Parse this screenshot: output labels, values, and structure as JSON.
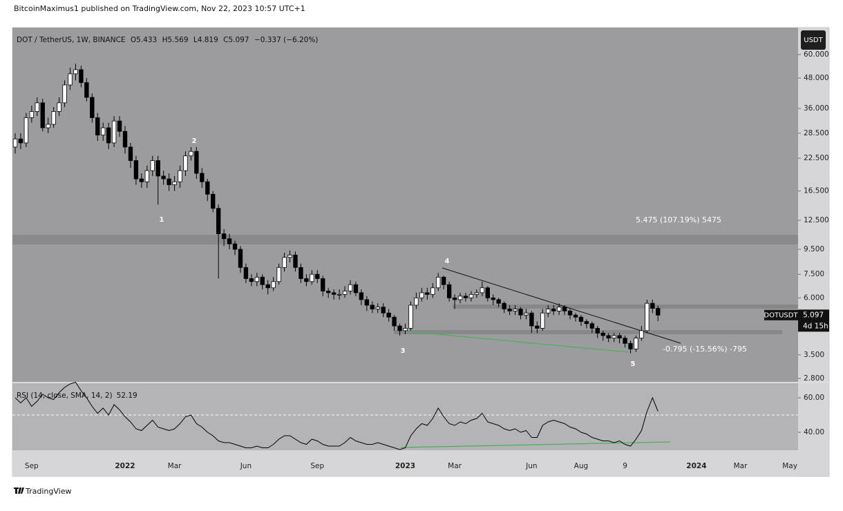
{
  "header": {
    "published": "BitcoinMaximus1 published on TradingView.com, Nov 22, 2023 10:57 UTC+1"
  },
  "footer": "TradingView",
  "chart_data": {
    "type": "candlestick",
    "title": "DOT / TetherUS, 1W, BINANCE",
    "ohlc_labels": [
      "O",
      "H",
      "L",
      "C"
    ],
    "change_label": "−0.337 (−6.20%)",
    "currency": "USDT",
    "symbol": "DOTUSDT",
    "countdown": "4d 15h",
    "log_scale": true,
    "up_color": "#ffffff",
    "down_color": "#000000",
    "wick_color": "#000000",
    "categories": [
      null,
      null,
      null,
      "Sep",
      null,
      null,
      null,
      null,
      null,
      null,
      null,
      null,
      null,
      null,
      null,
      null,
      null,
      null,
      null,
      null,
      "2022",
      null,
      null,
      null,
      null,
      null,
      null,
      null,
      null,
      "Mar",
      null,
      null,
      null,
      null,
      null,
      null,
      null,
      null,
      null,
      null,
      null,
      null,
      "Jun",
      null,
      null,
      null,
      null,
      null,
      null,
      null,
      null,
      null,
      null,
      null,
      null,
      "Sep",
      null,
      null,
      null,
      null,
      null,
      null,
      null,
      null,
      null,
      null,
      null,
      null,
      null,
      null,
      null,
      "2023",
      null,
      null,
      null,
      null,
      null,
      null,
      null,
      null,
      "Mar",
      null,
      null,
      null,
      null,
      null,
      null,
      null,
      null,
      null,
      null,
      null,
      null,
      null,
      "Jun",
      null,
      null,
      null,
      null,
      null,
      null,
      null,
      null,
      "Aug",
      null,
      null,
      null,
      null,
      null,
      null,
      null,
      "9",
      null,
      null,
      null,
      null,
      null,
      null,
      null,
      null,
      null,
      null,
      null,
      null,
      "2024",
      null,
      null,
      null,
      null,
      null,
      null,
      null,
      "Mar",
      null,
      null,
      null,
      null,
      null,
      null,
      null,
      null,
      "May",
      null
    ],
    "candles": {
      "open": [
        25,
        27,
        26,
        33,
        35,
        38,
        30,
        31,
        35,
        38,
        45,
        50,
        52,
        46,
        40,
        33,
        28,
        30,
        26,
        32,
        29,
        25,
        22,
        18.5,
        18,
        20,
        22,
        19,
        18.5,
        17.5,
        18,
        20,
        23,
        24,
        19.5,
        18,
        16,
        14,
        11,
        10.5,
        10,
        9.5,
        8,
        7.2,
        7,
        7.3,
        6.8,
        6.6,
        7,
        8,
        8.8,
        9,
        8,
        7.2,
        7,
        7.5,
        7.2,
        6.4,
        6.3,
        6.2,
        6.2,
        6.4,
        6.8,
        6.3,
        5.9,
        5.6,
        5.4,
        5.5,
        5.2,
        5,
        4.6,
        4.4,
        4.5,
        5.6,
        6,
        6.3,
        6.2,
        6.6,
        7.3,
        6.8,
        6,
        5.9,
        6.1,
        6,
        6.2,
        6.3,
        6.6,
        6,
        5.9,
        5.7,
        5.4,
        5.3,
        5.4,
        5.1,
        5.2,
        4.6,
        4.5,
        5.2,
        5.4,
        5.3,
        5.5,
        5.3,
        5.1,
        5,
        4.8,
        4.7,
        4.5,
        4.3,
        4.2,
        4.1,
        4.2,
        4.1,
        3.9,
        3.7,
        4.1,
        4.4,
        5.7,
        5.433,
        null,
        null,
        null,
        null,
        null,
        null,
        null,
        null,
        null,
        null,
        null,
        null,
        null,
        null,
        null,
        null,
        null,
        null,
        null,
        null,
        null,
        null,
        null,
        null,
        null
      ],
      "high": [
        28.5,
        28.5,
        34.5,
        37,
        40,
        39.5,
        33,
        36.5,
        40,
        47,
        53,
        55,
        54,
        48,
        41.5,
        34.5,
        31.5,
        31.5,
        33.5,
        33.5,
        30.5,
        26,
        23,
        19.5,
        21,
        23,
        23,
        20,
        19.5,
        19,
        21,
        24,
        25,
        25,
        20.5,
        18.5,
        16.5,
        14.5,
        11.5,
        11,
        10.3,
        9.8,
        8.3,
        7.5,
        7.6,
        7.5,
        7.1,
        7.3,
        8.3,
        9.2,
        9.4,
        9.3,
        8.3,
        7.5,
        7.8,
        7.8,
        7.4,
        6.6,
        6.5,
        6.5,
        6.7,
        7.1,
        7,
        6.5,
        6.1,
        5.8,
        5.7,
        5.7,
        5.4,
        5.1,
        4.7,
        4.7,
        5.8,
        6.3,
        6.6,
        6.6,
        6.9,
        7.6,
        7.4,
        7,
        6.2,
        6.3,
        6.3,
        6.4,
        6.5,
        7,
        6.7,
        6.2,
        6,
        5.8,
        5.6,
        5.6,
        5.5,
        5.4,
        5.3,
        4.8,
        5.4,
        5.6,
        5.6,
        5.7,
        5.6,
        5.4,
        5.2,
        5.1,
        4.9,
        4.8,
        4.6,
        4.4,
        4.3,
        4.3,
        4.3,
        4.2,
        4,
        4.2,
        4.6,
        5.9,
        5.9,
        5.569,
        null,
        null,
        null,
        null,
        null,
        null,
        null,
        null,
        null,
        null,
        null,
        null,
        null,
        null,
        null,
        null,
        null,
        null,
        null,
        null,
        null,
        null,
        null,
        null,
        null
      ],
      "low": [
        23.5,
        24.5,
        25,
        31.5,
        33.5,
        29,
        28.5,
        30,
        33.5,
        36.5,
        43,
        47,
        44,
        38.5,
        31.5,
        26.5,
        26.5,
        24.5,
        25,
        27.5,
        23.5,
        20.5,
        17.5,
        17,
        17,
        19,
        14.5,
        17.5,
        16.5,
        16.5,
        17,
        19,
        22,
        18.5,
        17,
        15,
        13.5,
        7.2,
        9.8,
        9.5,
        9,
        7.6,
        6.9,
        6.7,
        6.7,
        6.5,
        6.2,
        6.4,
        6.8,
        7.7,
        8.4,
        7.7,
        6.9,
        6.7,
        6.8,
        6.9,
        6.1,
        6,
        5.9,
        5.9,
        6,
        6.2,
        6.1,
        5.6,
        5.3,
        5.2,
        5.2,
        5,
        4.8,
        4.4,
        4.2,
        4.25,
        4.4,
        5.4,
        5.8,
        5.9,
        6,
        6.4,
        6.5,
        5.8,
        5.4,
        5.7,
        5.8,
        5.8,
        6,
        6.1,
        5.8,
        5.6,
        5.5,
        5.2,
        5.1,
        5.1,
        4.9,
        4.9,
        4.3,
        4.3,
        4.4,
        5,
        5.1,
        5.1,
        5.1,
        4.9,
        4.8,
        4.6,
        4.5,
        4.3,
        4.1,
        4,
        3.95,
        3.95,
        3.9,
        3.75,
        3.55,
        3.6,
        4,
        4.3,
        5.2,
        4.819,
        null,
        null,
        null,
        null,
        null,
        null,
        null,
        null,
        null,
        null,
        null,
        null,
        null,
        null,
        null,
        null,
        null,
        null,
        null,
        null,
        null,
        null,
        null,
        null,
        null
      ],
      "close": [
        27,
        26,
        33,
        35,
        38,
        30,
        31,
        35,
        38,
        45,
        50,
        52,
        46,
        40,
        33,
        28,
        30,
        26,
        32,
        29,
        25,
        22,
        18.5,
        18,
        20,
        22,
        19,
        18.5,
        17.5,
        18,
        20,
        23,
        24,
        19.5,
        18,
        16,
        14,
        11,
        10.5,
        10,
        9.5,
        8,
        7.2,
        7,
        7.3,
        6.8,
        6.6,
        7,
        8,
        8.8,
        9,
        8,
        7.2,
        7,
        7.5,
        7.2,
        6.4,
        6.3,
        6.2,
        6.2,
        6.4,
        6.8,
        6.3,
        5.9,
        5.6,
        5.4,
        5.5,
        5.2,
        5,
        4.6,
        4.4,
        4.5,
        5.6,
        6,
        6.3,
        6.2,
        6.6,
        7.3,
        6.8,
        6,
        5.9,
        6.1,
        6,
        6.2,
        6.3,
        6.6,
        6,
        5.9,
        5.7,
        5.4,
        5.3,
        5.4,
        5.1,
        5.2,
        4.6,
        4.5,
        5.2,
        5.4,
        5.3,
        5.5,
        5.3,
        5.1,
        5,
        4.8,
        4.7,
        4.5,
        4.3,
        4.2,
        4.1,
        4.2,
        4.1,
        3.9,
        3.7,
        4.1,
        4.4,
        5.7,
        5.433,
        5.097,
        null,
        null,
        null,
        null,
        null,
        null,
        null,
        null,
        null,
        null,
        null,
        null,
        null,
        null,
        null,
        null,
        null,
        null,
        null,
        null,
        null,
        null,
        null,
        null,
        null
      ]
    },
    "ylim": [
      2.71,
      77.4
    ],
    "yticks": [
      {
        "value": 60,
        "label": "60.000"
      },
      {
        "value": 48,
        "label": "48.000"
      },
      {
        "value": 36,
        "label": "36.000"
      },
      {
        "value": 28.5,
        "label": "28.500"
      },
      {
        "value": 22.5,
        "label": "22.500"
      },
      {
        "value": 16.5,
        "label": "16.500"
      },
      {
        "value": 12.5,
        "label": "12.500"
      },
      {
        "value": 9.5,
        "label": "9.500"
      },
      {
        "value": 7.5,
        "label": "7.500"
      },
      {
        "value": 6,
        "label": "6.000"
      },
      {
        "value": 3.5,
        "label": "3.500"
      },
      {
        "value": 2.8,
        "label": "2.800"
      }
    ],
    "annotations": [
      "1",
      "2",
      "3",
      "4",
      "5",
      "5.475 (107.19%) 5475",
      "-0.795 (-15.56%) -795"
    ],
    "rsi": {
      "label": "RSI (14, close, SMA, 14, 2)",
      "color": "#000000",
      "midline": 50,
      "values": [
        60,
        57,
        60,
        55,
        58,
        62,
        60,
        59,
        63,
        66,
        68,
        69,
        64,
        60,
        55,
        51,
        54,
        50,
        56,
        53,
        49,
        46,
        42,
        41,
        44,
        47,
        43,
        42,
        41,
        42,
        45,
        49,
        50,
        45,
        43,
        40,
        38,
        35,
        34,
        34,
        33,
        32,
        31,
        31,
        32,
        31,
        31,
        33,
        36,
        38,
        38,
        36,
        34,
        33,
        36,
        35,
        33,
        32,
        32,
        32,
        34,
        37,
        35,
        34,
        33,
        33,
        34,
        33,
        32,
        31,
        30,
        31,
        38,
        42,
        45,
        44,
        48,
        54,
        49,
        45,
        44,
        46,
        45,
        47,
        48,
        51,
        46,
        45,
        44,
        42,
        41,
        42,
        40,
        41,
        37,
        37,
        44,
        46,
        47,
        46,
        45,
        43,
        42,
        40,
        39,
        37,
        36,
        35,
        35,
        34,
        35,
        33,
        32,
        36,
        41,
        52,
        60,
        52.19,
        null,
        null,
        null,
        null,
        null,
        null,
        null,
        null,
        null,
        null,
        null,
        null,
        null,
        null,
        null,
        null,
        null,
        null,
        null,
        null,
        null,
        null,
        null,
        null,
        null
      ],
      "ylim": [
        29.6,
        68.4
      ],
      "yticks": [
        {
          "value": 60,
          "label": "60.00"
        },
        {
          "value": 40,
          "label": "40.00"
        }
      ]
    }
  }
}
